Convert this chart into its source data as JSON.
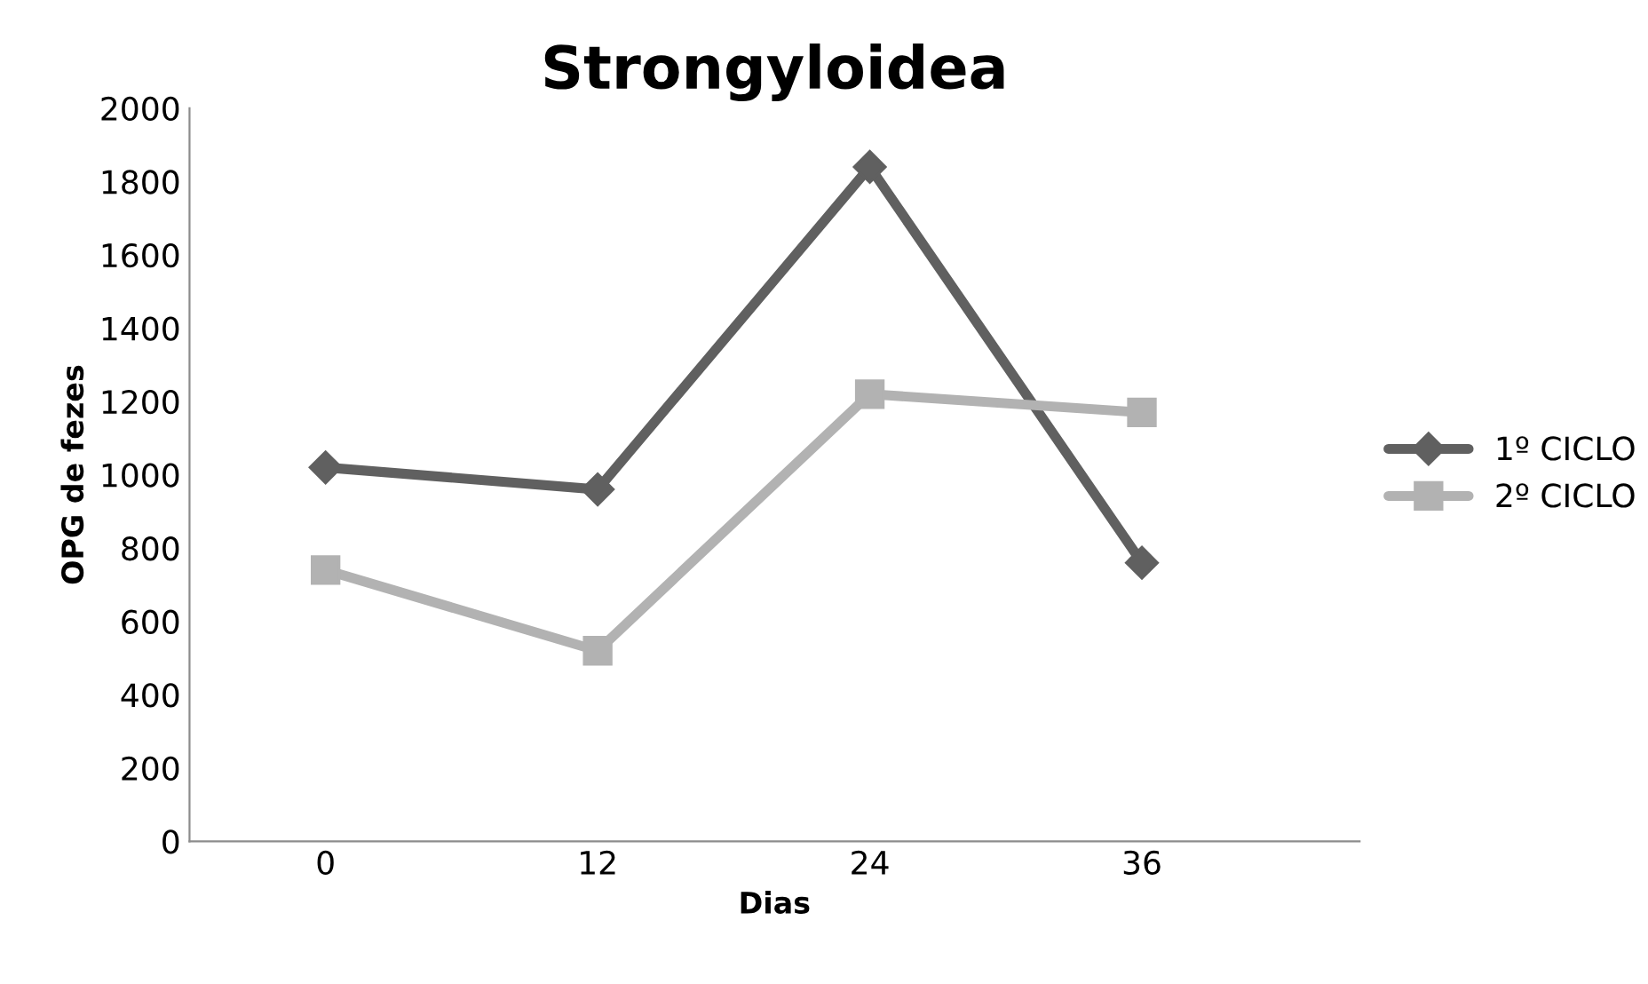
{
  "chart_data": {
    "type": "line",
    "title": "Strongyloidea",
    "xlabel": "Dias",
    "ylabel": "OPG de fezes",
    "categories": [
      "0",
      "12",
      "24",
      "36"
    ],
    "series": [
      {
        "name": "1º CICLO",
        "color": "#606060",
        "marker": "diamond",
        "values": [
          1020,
          960,
          1840,
          760
        ]
      },
      {
        "name": "2º CICLO",
        "color": "#b2b2b2",
        "marker": "square",
        "values": [
          740,
          520,
          1220,
          1170
        ]
      }
    ],
    "ylim": [
      0,
      2000
    ],
    "yticks": [
      0,
      200,
      400,
      600,
      800,
      1000,
      1200,
      1400,
      1600,
      1800,
      2000
    ],
    "grid": false,
    "legend": "right"
  }
}
